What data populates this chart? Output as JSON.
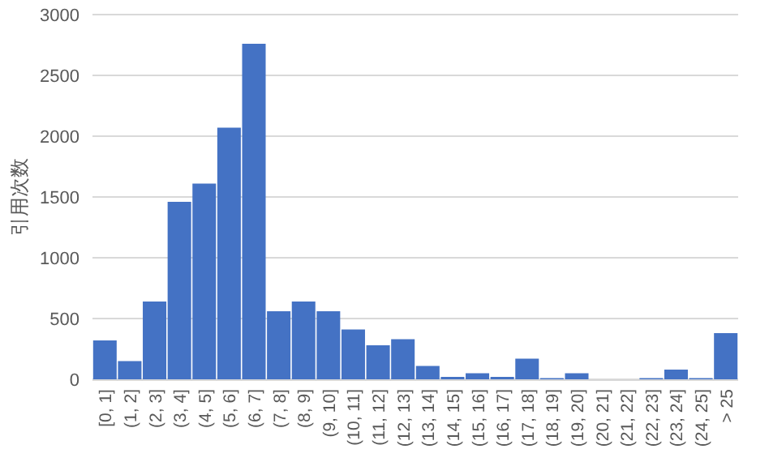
{
  "chart_data": {
    "type": "bar",
    "ylabel": "引用次数",
    "categories": [
      "[0, 1]",
      "(1, 2]",
      "(2, 3]",
      "(3, 4]",
      "(4, 5]",
      "(5, 6]",
      "(6, 7]",
      "(7, 8]",
      "(8, 9]",
      "(9, 10]",
      "(10, 11]",
      "(11, 12]",
      "(12, 13]",
      "(13, 14]",
      "(14, 15]",
      "(15, 16]",
      "(16, 17]",
      "(17, 18]",
      "(18, 19]",
      "(19, 20]",
      "(20, 21]",
      "(21, 22]",
      "(22, 23]",
      "(23, 24]",
      "(24, 25]",
      "> 25"
    ],
    "values": [
      320,
      150,
      640,
      1460,
      1610,
      2070,
      2760,
      560,
      640,
      560,
      410,
      280,
      330,
      110,
      20,
      50,
      20,
      170,
      10,
      50,
      0,
      0,
      10,
      80,
      10,
      380
    ],
    "color": "#4472c4",
    "ylim": [
      0,
      3000
    ],
    "yticks": [
      0,
      500,
      1000,
      1500,
      2000,
      2500,
      3000
    ],
    "grid": "y"
  }
}
